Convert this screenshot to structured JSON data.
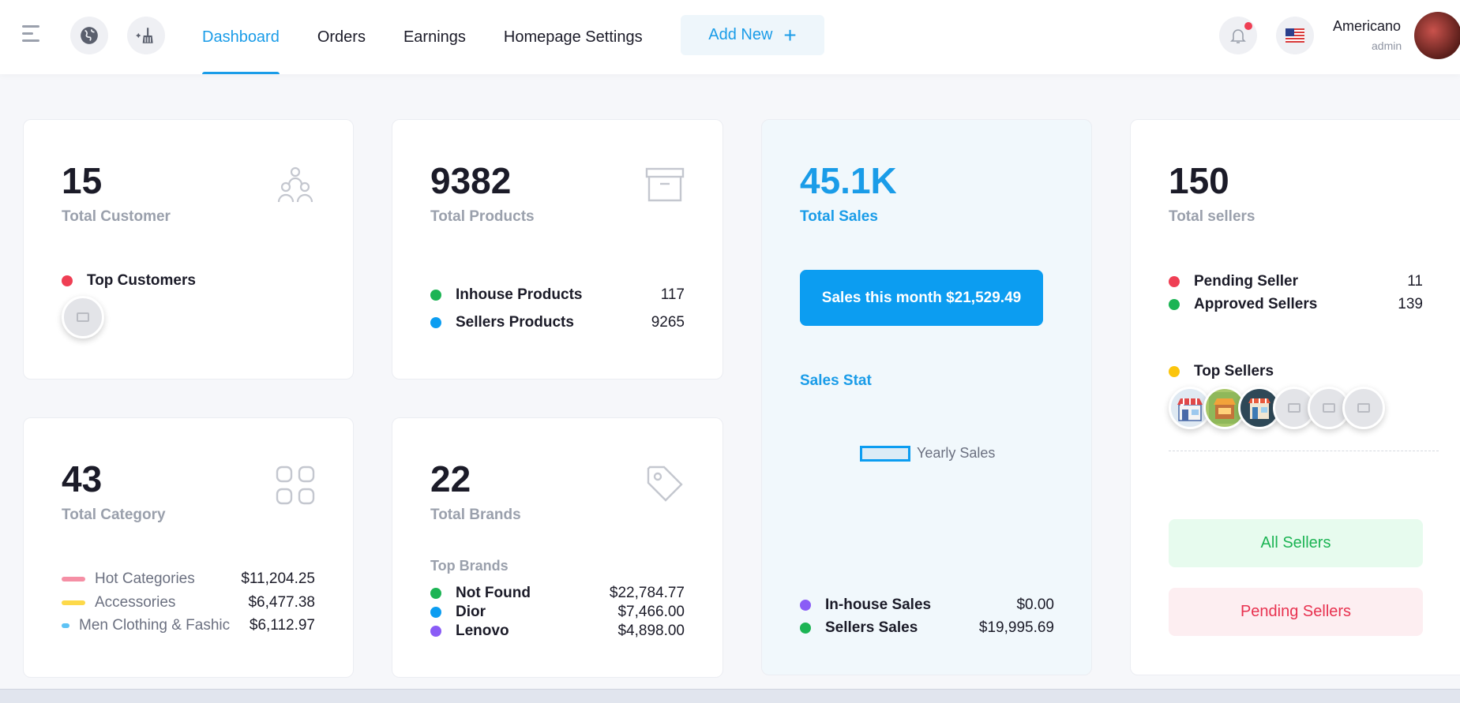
{
  "header": {
    "nav": [
      "Dashboard",
      "Orders",
      "Earnings",
      "Homepage Settings"
    ],
    "add_new": "Add New",
    "user_name": "Americano",
    "user_role": "admin"
  },
  "customers": {
    "value": "15",
    "label": "Total Customer",
    "top_label": "Top Customers"
  },
  "products": {
    "value": "9382",
    "label": "Total Products",
    "rows": [
      {
        "label": "Inhouse Products",
        "value": "117",
        "color": "#1cb454"
      },
      {
        "label": "Sellers Products",
        "value": "9265",
        "color": "#0c9df1"
      }
    ]
  },
  "sales": {
    "value": "45.1K",
    "label": "Total Sales",
    "month_button": "Sales this month $21,529.49",
    "stat_title": "Sales Stat",
    "legend": "Yearly Sales",
    "rows": [
      {
        "label": "In-house Sales",
        "value": "$0.00",
        "color": "#8a5cf6"
      },
      {
        "label": "Sellers Sales",
        "value": "$19,995.69",
        "color": "#1cb454"
      }
    ]
  },
  "sellers": {
    "value": "150",
    "label": "Total sellers",
    "rows": [
      {
        "label": "Pending Seller",
        "value": "11",
        "color": "#ef3f54"
      },
      {
        "label": "Approved Sellers",
        "value": "139",
        "color": "#1cb454"
      }
    ],
    "top_label": "Top Sellers",
    "all_button": "All Sellers",
    "pending_button": "Pending Sellers"
  },
  "category": {
    "value": "43",
    "label": "Total Category",
    "rows": [
      {
        "label": "Hot Categories",
        "value": "$11,204.25",
        "color": "#f58fa5"
      },
      {
        "label": "Accessories",
        "value": "$6,477.38",
        "color": "#fdd94a"
      },
      {
        "label": "Men Clothing & Fashic",
        "value": "$6,112.97",
        "color": "#5ec3f5"
      }
    ]
  },
  "brands": {
    "value": "22",
    "label": "Total Brands",
    "top_label": "Top Brands",
    "rows": [
      {
        "label": "Not Found",
        "value": "$22,784.77",
        "color": "#1cb454"
      },
      {
        "label": "Dior",
        "value": "$7,466.00",
        "color": "#0c9df1"
      },
      {
        "label": "Lenovo",
        "value": "$4,898.00",
        "color": "#8a5cf6"
      }
    ]
  }
}
